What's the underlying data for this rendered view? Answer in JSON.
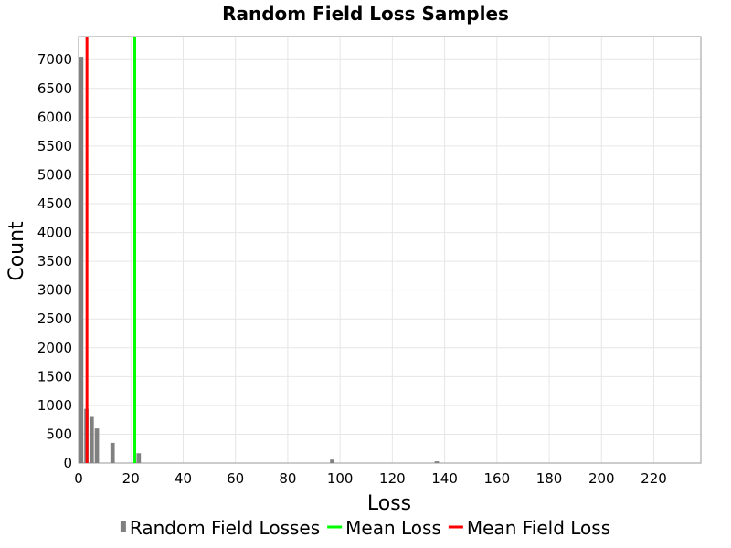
{
  "chart_data": {
    "type": "bar",
    "title": "Random Field Loss Samples",
    "xlabel": "Loss",
    "ylabel": "Count",
    "xlim": [
      0,
      238
    ],
    "ylim": [
      0,
      7400
    ],
    "x_ticks": [
      0,
      20,
      40,
      60,
      80,
      100,
      120,
      140,
      160,
      180,
      200,
      220
    ],
    "y_ticks": [
      0,
      500,
      1000,
      1500,
      2000,
      2500,
      3000,
      3500,
      4000,
      4500,
      5000,
      5500,
      6000,
      6500,
      7000
    ],
    "grid": true,
    "bin_width": 2,
    "series": [
      {
        "name": "Random Field Losses",
        "color": "#808080",
        "x": [
          1,
          3,
          5,
          7,
          9,
          11,
          13,
          15,
          17,
          19,
          21,
          23,
          97,
          137
        ],
        "values": [
          7050,
          940,
          800,
          600,
          0,
          0,
          350,
          0,
          0,
          0,
          0,
          170,
          60,
          30
        ]
      }
    ],
    "vlines": [
      {
        "name": "Mean Loss",
        "x": 21.5,
        "color": "#00ff00"
      },
      {
        "name": "Mean Field Loss",
        "x": 3.2,
        "color": "#ff0000"
      }
    ],
    "legend": {
      "position": "bottom",
      "entries": [
        {
          "label": "Random Field Losses",
          "color": "#808080",
          "marker": "bar"
        },
        {
          "label": "Mean Loss",
          "color": "#00ff00",
          "marker": "line"
        },
        {
          "label": "Mean Field Loss",
          "color": "#ff0000",
          "marker": "line"
        }
      ]
    }
  }
}
